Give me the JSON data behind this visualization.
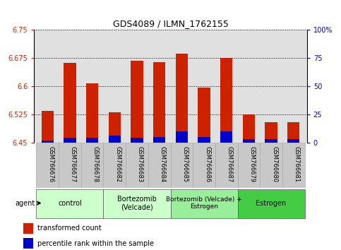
{
  "title": "GDS4089 / ILMN_1762155",
  "samples": [
    "GSM766676",
    "GSM766677",
    "GSM766678",
    "GSM766682",
    "GSM766683",
    "GSM766684",
    "GSM766685",
    "GSM766686",
    "GSM766687",
    "GSM766679",
    "GSM766680",
    "GSM766681"
  ],
  "transformed_counts": [
    6.535,
    6.663,
    6.607,
    6.53,
    6.668,
    6.665,
    6.687,
    6.597,
    6.676,
    6.525,
    6.505,
    6.505
  ],
  "percentile_ranks": [
    1.5,
    4,
    4,
    6,
    4,
    5,
    10,
    5,
    10,
    3,
    3,
    3
  ],
  "groups": [
    {
      "label": "control",
      "start": 0,
      "end": 3
    },
    {
      "label": "Bortezomib\n(Velcade)",
      "start": 3,
      "end": 6
    },
    {
      "label": "Bortezomib (Velcade) +\nEstrogen",
      "start": 6,
      "end": 9
    },
    {
      "label": "Estrogen",
      "start": 9,
      "end": 12
    }
  ],
  "group_colors": [
    "#ccffcc",
    "#ccffcc",
    "#99ee99",
    "#44cc44"
  ],
  "ymin": 6.45,
  "ymax": 6.75,
  "yticks": [
    6.45,
    6.525,
    6.6,
    6.675,
    6.75
  ],
  "ytick_labels": [
    "6.45",
    "6.525",
    "6.6",
    "6.675",
    "6.75"
  ],
  "right_yticks": [
    0,
    25,
    50,
    75,
    100
  ],
  "right_ytick_labels": [
    "0",
    "25",
    "50",
    "75",
    "100%"
  ],
  "bar_color_red": "#cc2200",
  "bar_color_blue": "#0000cc",
  "bg_plot": "#e0e0e0",
  "bg_xtick": "#c8c8c8",
  "legend_red_label": "transformed count",
  "legend_blue_label": "percentile rank within the sample",
  "xlabel_agent": "agent"
}
